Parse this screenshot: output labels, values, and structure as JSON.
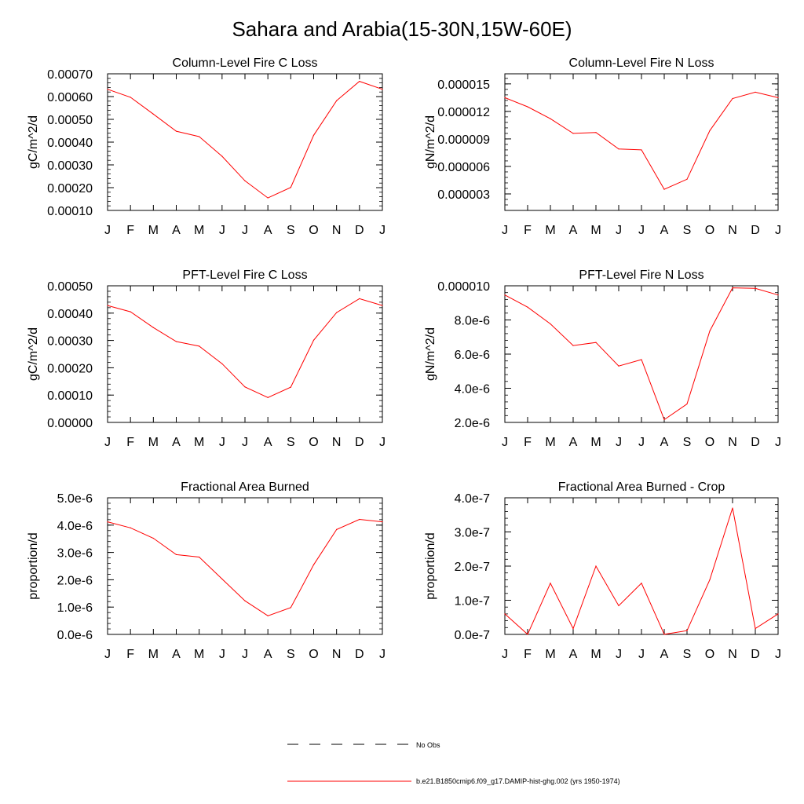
{
  "title": "Sahara and Arabia(15-30N,15W-60E)",
  "legend": {
    "obs_label": "No Obs",
    "model_label": "b.e21.B1850cmip6.f09_g17.DAMIP-hist-ghg.002 (yrs 1950-1974)",
    "model_color": "#ff0000",
    "obs_color": "#000000"
  },
  "chart_data": [
    {
      "type": "line",
      "title": "Column-Level Fire C Loss",
      "ylabel": "gC/m^2/d",
      "categories": [
        "J",
        "F",
        "M",
        "A",
        "M",
        "J",
        "J",
        "A",
        "S",
        "O",
        "N",
        "D",
        "J"
      ],
      "ylim": [
        0.0001,
        0.0007
      ],
      "yticks": [
        0.0001,
        0.0002,
        0.0003,
        0.0004,
        0.0005,
        0.0006,
        0.0007
      ],
      "ytick_labels": [
        "0.00010",
        "0.00020",
        "0.00030",
        "0.00040",
        "0.00050",
        "0.00060",
        "0.00070"
      ],
      "series": [
        {
          "values": [
            0.000632,
            0.000597,
            0.000523,
            0.000448,
            0.000424,
            0.000338,
            0.00023,
            0.000155,
            0.000201,
            0.00043,
            0.000582,
            0.000667,
            0.000632
          ]
        }
      ]
    },
    {
      "type": "line",
      "title": "Column-Level Fire N Loss",
      "ylabel": "gN/m^2/d",
      "categories": [
        "J",
        "F",
        "M",
        "A",
        "M",
        "J",
        "J",
        "A",
        "S",
        "O",
        "N",
        "D",
        "J"
      ],
      "ylim": [
        1.2e-06,
        1.61e-05
      ],
      "yticks": [
        3e-06,
        6e-06,
        9e-06,
        1.2e-05,
        1.5e-05
      ],
      "ytick_labels": [
        "0.000003",
        "0.000006",
        "0.000009",
        "0.000012",
        "0.000015"
      ],
      "series": [
        {
          "values": [
            1.35e-05,
            1.25e-05,
            1.12e-05,
            9.6e-06,
            9.7e-06,
            7.9e-06,
            7.8e-06,
            3.5e-06,
            4.6e-06,
            9.9e-06,
            1.34e-05,
            1.41e-05,
            1.35e-05
          ]
        }
      ]
    },
    {
      "type": "line",
      "title": "PFT-Level Fire C Loss",
      "ylabel": "gC/m^2/d",
      "categories": [
        "J",
        "F",
        "M",
        "A",
        "M",
        "J",
        "J",
        "A",
        "S",
        "O",
        "N",
        "D",
        "J"
      ],
      "ylim": [
        0.0,
        0.0005
      ],
      "yticks": [
        0.0,
        0.0001,
        0.0002,
        0.0003,
        0.0004,
        0.0005
      ],
      "ytick_labels": [
        "0.00000",
        "0.00010",
        "0.00020",
        "0.00030",
        "0.00040",
        "0.00050"
      ],
      "series": [
        {
          "values": [
            0.000428,
            0.000405,
            0.000347,
            0.000296,
            0.000279,
            0.000215,
            0.00013,
            9.1e-05,
            0.000129,
            0.000301,
            0.000402,
            0.000453,
            0.000428
          ]
        }
      ]
    },
    {
      "type": "line",
      "title": "PFT-Level Fire N Loss",
      "ylabel": "gN/m^2/d",
      "categories": [
        "J",
        "F",
        "M",
        "A",
        "M",
        "J",
        "J",
        "A",
        "S",
        "O",
        "N",
        "D",
        "J"
      ],
      "ylim": [
        2e-06,
        1e-05
      ],
      "yticks": [
        2e-06,
        4e-06,
        6e-06,
        8e-06,
        1e-05
      ],
      "ytick_labels": [
        "2.0e-6",
        "4.0e-6",
        "6.0e-6",
        "8.0e-6",
        "0.000010"
      ],
      "series": [
        {
          "values": [
            9.46e-06,
            8.75e-06,
            7.77e-06,
            6.5e-06,
            6.68e-06,
            5.3e-06,
            5.68e-06,
            2.16e-06,
            3.08e-06,
            7.35e-06,
            9.88e-06,
            9.85e-06,
            9.46e-06
          ]
        }
      ]
    },
    {
      "type": "line",
      "title": "Fractional Area Burned",
      "ylabel": "proportion/d",
      "categories": [
        "J",
        "F",
        "M",
        "A",
        "M",
        "J",
        "J",
        "A",
        "S",
        "O",
        "N",
        "D",
        "J"
      ],
      "ylim": [
        0.0,
        5e-06
      ],
      "yticks": [
        0.0,
        1e-06,
        2e-06,
        3e-06,
        4e-06,
        5e-06
      ],
      "ytick_labels": [
        "0.0e-6",
        "1.0e-6",
        "2.0e-6",
        "3.0e-6",
        "4.0e-6",
        "5.0e-6"
      ],
      "series": [
        {
          "values": [
            4.12e-06,
            3.9e-06,
            3.52e-06,
            2.92e-06,
            2.83e-06,
            2.03e-06,
            1.23e-06,
            6.8e-07,
            9.8e-07,
            2.55e-06,
            3.84e-06,
            4.21e-06,
            4.12e-06
          ]
        }
      ]
    },
    {
      "type": "line",
      "title": "Fractional Area Burned - Crop",
      "ylabel": "proportion/d",
      "categories": [
        "J",
        "F",
        "M",
        "A",
        "M",
        "J",
        "J",
        "A",
        "S",
        "O",
        "N",
        "D",
        "J"
      ],
      "ylim": [
        0.0,
        4e-07
      ],
      "yticks": [
        0.0,
        1e-07,
        2e-07,
        3e-07,
        4e-07
      ],
      "ytick_labels": [
        "0.0e-7",
        "1.0e-7",
        "2.0e-7",
        "3.0e-7",
        "4.0e-7"
      ],
      "series": [
        {
          "values": [
            6e-08,
            3e-10,
            1.5e-07,
            1.7e-08,
            2e-07,
            8.4e-08,
            1.5e-07,
            2e-10,
            1.1e-08,
            1.6e-07,
            3.7e-07,
            1.7e-08,
            6e-08
          ]
        }
      ]
    }
  ]
}
